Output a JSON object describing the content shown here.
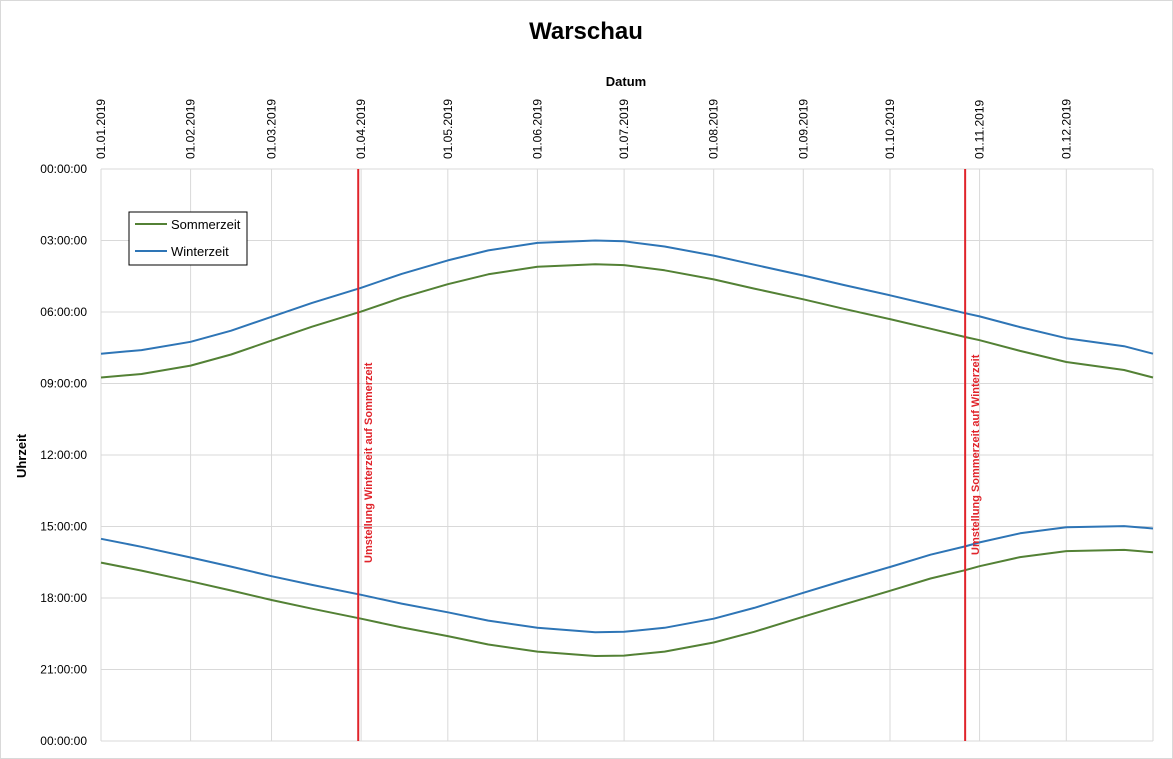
{
  "chart_data": {
    "type": "line",
    "title": "Warschau",
    "xlabel": "Datum",
    "ylabel": "Uhrzeit",
    "x_axis_position": "top",
    "y_axis_reversed": true,
    "xlim": [
      "2019-01-01",
      "2019-12-31"
    ],
    "ylim": [
      "00:00:00",
      "24:00:00"
    ],
    "x_tick_labels": [
      "01.01.2019",
      "01.02.2019",
      "01.03.2019",
      "01.04.2019",
      "01.05.2019",
      "01.06.2019",
      "01.07.2019",
      "01.08.2019",
      "01.09.2019",
      "01.10.2019",
      "01.11.2019",
      "01.12.2019"
    ],
    "y_tick_labels": [
      "00:00:00",
      "03:00:00",
      "06:00:00",
      "09:00:00",
      "12:00:00",
      "15:00:00",
      "18:00:00",
      "21:00:00",
      "00:00:00"
    ],
    "grid": true,
    "legend_position": "top-left",
    "x": [
      "2019-01-01",
      "2019-01-15",
      "2019-02-01",
      "2019-02-15",
      "2019-03-01",
      "2019-03-15",
      "2019-04-01",
      "2019-04-15",
      "2019-05-01",
      "2019-05-15",
      "2019-06-01",
      "2019-06-21",
      "2019-07-01",
      "2019-07-15",
      "2019-08-01",
      "2019-08-15",
      "2019-09-01",
      "2019-09-15",
      "2019-10-01",
      "2019-10-15",
      "2019-10-27",
      "2019-11-01",
      "2019-11-15",
      "2019-12-01",
      "2019-12-21",
      "2019-12-31"
    ],
    "series": [
      {
        "name": "Sommerzeit",
        "color": "#538135",
        "sunrise": [
          "08:45",
          "08:36",
          "08:15",
          "07:47",
          "07:12",
          "06:37",
          "05:59",
          "05:24",
          "04:50",
          "04:25",
          "04:06",
          "04:00",
          "04:02",
          "04:15",
          "04:38",
          "05:01",
          "05:28",
          "05:52",
          "06:18",
          "06:42",
          "07:03",
          "07:11",
          "07:38",
          "08:06",
          "08:26",
          "08:45"
        ],
        "sunset": [
          "16:31",
          "16:51",
          "17:18",
          "17:41",
          "18:05",
          "18:27",
          "18:52",
          "19:14",
          "19:36",
          "19:57",
          "20:15",
          "20:26",
          "20:25",
          "20:15",
          "19:52",
          "19:25",
          "18:47",
          "18:16",
          "17:42",
          "17:11",
          "16:50",
          "16:40",
          "16:17",
          "16:02",
          "15:59",
          "16:05"
        ]
      },
      {
        "name": "Winterzeit",
        "color": "#2e75b6",
        "sunrise": [
          "07:45",
          "07:36",
          "07:15",
          "06:47",
          "06:12",
          "05:37",
          "04:59",
          "04:24",
          "03:50",
          "03:25",
          "03:06",
          "03:00",
          "03:02",
          "03:15",
          "03:38",
          "04:01",
          "04:28",
          "04:52",
          "05:18",
          "05:42",
          "06:03",
          "06:11",
          "06:38",
          "07:06",
          "07:26",
          "07:45"
        ],
        "sunset": [
          "15:31",
          "15:51",
          "16:18",
          "16:41",
          "17:05",
          "17:27",
          "17:52",
          "18:14",
          "18:36",
          "18:57",
          "19:15",
          "19:26",
          "19:25",
          "19:15",
          "18:52",
          "18:25",
          "17:47",
          "17:16",
          "16:42",
          "16:11",
          "15:50",
          "15:40",
          "15:17",
          "15:02",
          "14:59",
          "15:05"
        ]
      }
    ],
    "annotations": [
      {
        "date": "2019-03-31",
        "label": "Umstellung Winterzeit auf Sommerzeit",
        "color": "#e0242b"
      },
      {
        "date": "2019-10-27",
        "label": "Umstellung Sommerzeit auf Winterzeit",
        "color": "#e0242b"
      }
    ]
  }
}
